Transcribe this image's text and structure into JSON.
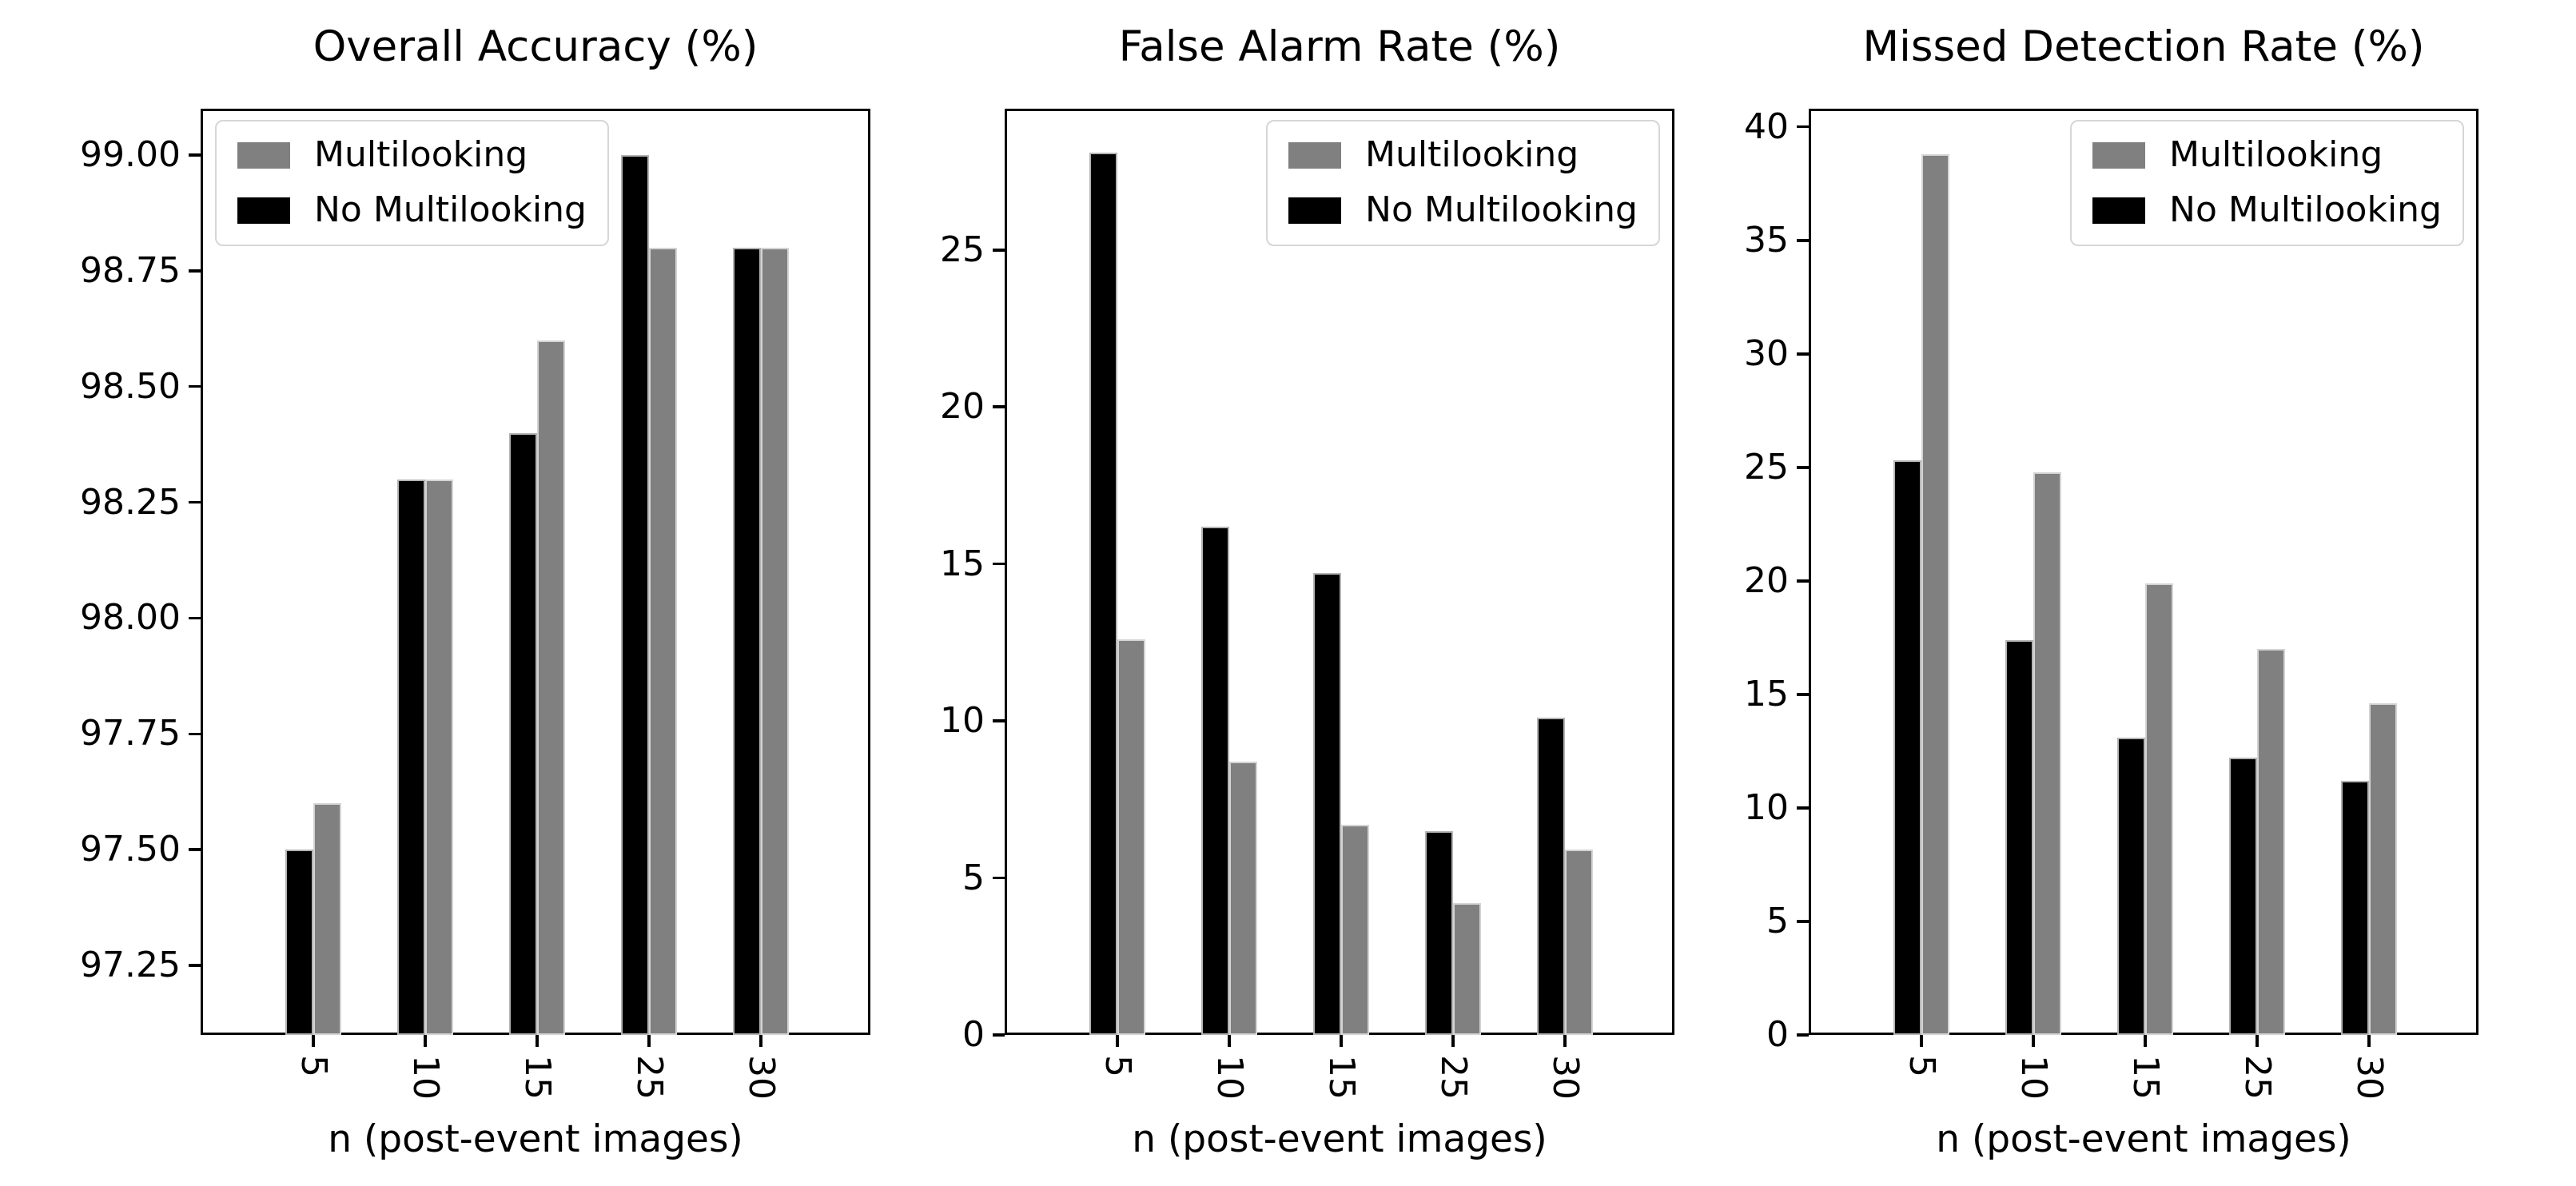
{
  "figure": {
    "background": "#ffffff",
    "n_subplots": 3
  },
  "colors": {
    "multilooking": "#808080",
    "no_multilooking": "#000000",
    "axis": "#000000",
    "legend_border": "#d6d6d6"
  },
  "legend": {
    "items": [
      {
        "label": "Multilooking",
        "color_key": "multilooking"
      },
      {
        "label": "No Multilooking",
        "color_key": "no_multilooking"
      }
    ]
  },
  "chart_data": [
    {
      "type": "bar",
      "title": "Overall Accuracy (%)",
      "xlabel": "n (post-event images)",
      "categories": [
        "5",
        "10",
        "15",
        "25",
        "30"
      ],
      "series": [
        {
          "name": "No Multilooking",
          "color_key": "no_multilooking",
          "values": [
            97.5,
            98.3,
            98.4,
            99.0,
            98.8
          ]
        },
        {
          "name": "Multilooking",
          "color_key": "multilooking",
          "values": [
            97.6,
            98.3,
            98.6,
            98.8,
            98.8
          ]
        }
      ],
      "ylim": [
        97.1,
        99.1
      ],
      "yticks": [
        "97.25",
        "97.50",
        "97.75",
        "98.00",
        "98.25",
        "98.50",
        "98.75",
        "99.00"
      ],
      "legend_position": "top-left",
      "grid": false
    },
    {
      "type": "bar",
      "title": "False Alarm Rate (%)",
      "xlabel": "n (post-event images)",
      "categories": [
        "5",
        "10",
        "15",
        "25",
        "30"
      ],
      "series": [
        {
          "name": "No Multilooking",
          "color_key": "no_multilooking",
          "values": [
            28.1,
            16.2,
            14.7,
            6.5,
            10.1
          ]
        },
        {
          "name": "Multilooking",
          "color_key": "multilooking",
          "values": [
            12.6,
            8.7,
            6.7,
            4.2,
            5.9
          ]
        }
      ],
      "ylim": [
        0,
        29.5
      ],
      "yticks": [
        "0",
        "5",
        "10",
        "15",
        "20",
        "25"
      ],
      "legend_position": "top-right",
      "grid": false
    },
    {
      "type": "bar",
      "title": "Missed Detection Rate (%)",
      "xlabel": "n (post-event images)",
      "categories": [
        "5",
        "10",
        "15",
        "25",
        "30"
      ],
      "series": [
        {
          "name": "No Multilooking",
          "color_key": "no_multilooking",
          "values": [
            25.3,
            17.4,
            13.1,
            12.2,
            11.2
          ]
        },
        {
          "name": "Multilooking",
          "color_key": "multilooking",
          "values": [
            38.8,
            24.8,
            19.9,
            17.0,
            14.6
          ]
        }
      ],
      "ylim": [
        0,
        40.8
      ],
      "yticks": [
        "0",
        "5",
        "10",
        "15",
        "20",
        "25",
        "30",
        "35",
        "40"
      ],
      "legend_position": "top-right",
      "grid": false
    }
  ]
}
